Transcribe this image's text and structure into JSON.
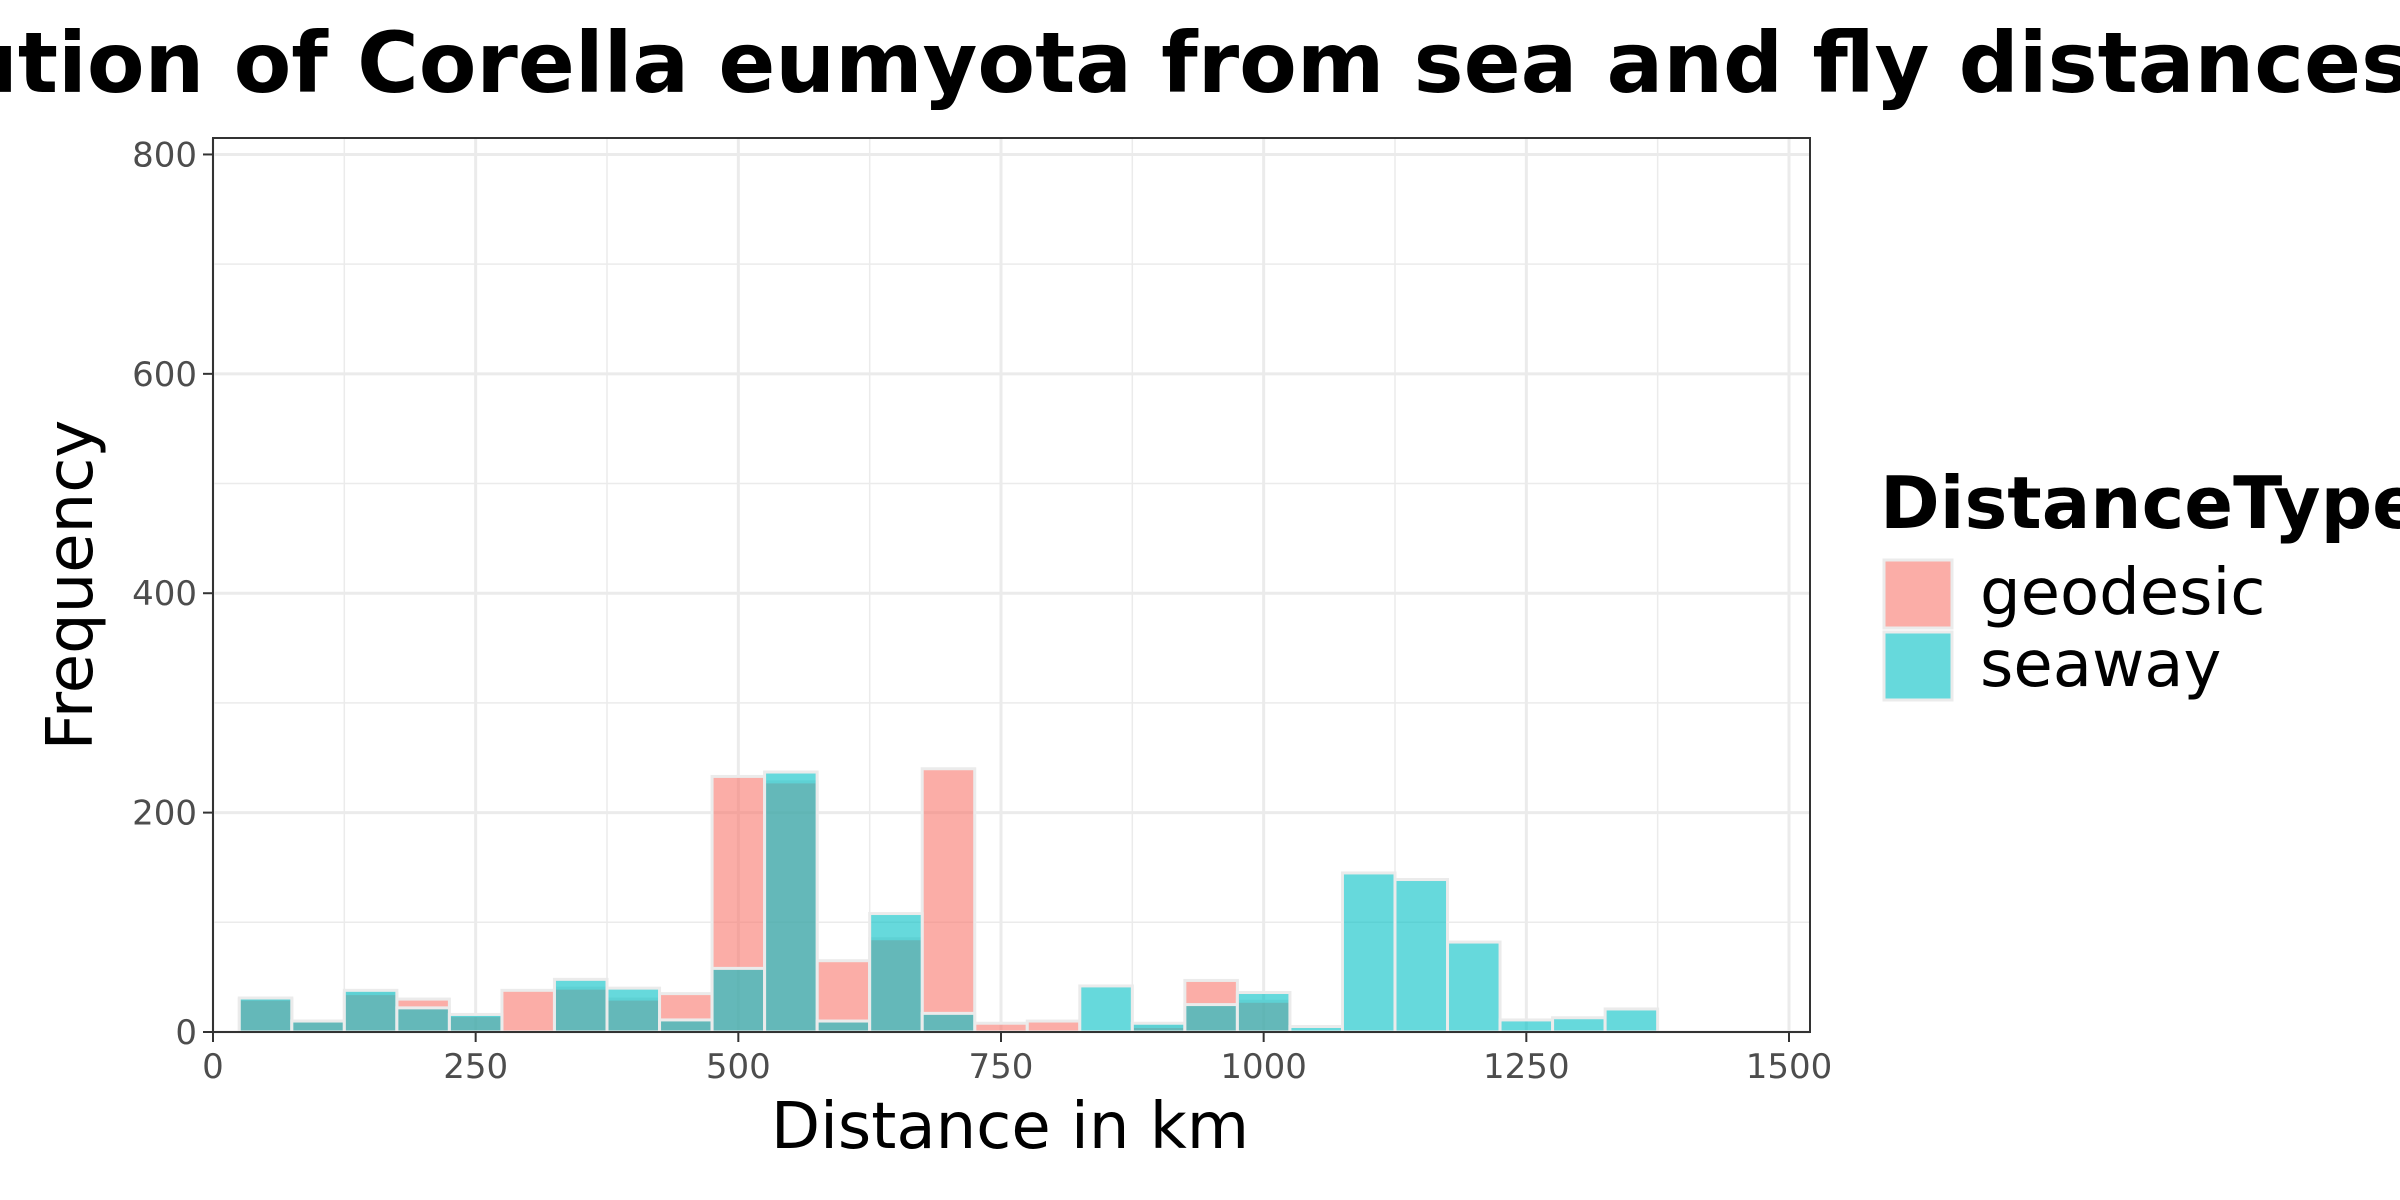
{
  "chart_data": {
    "type": "bar",
    "title": "Distribution of Corella eumyota from sea and fly distances",
    "xlabel": "Distance in km",
    "ylabel": "Frequency",
    "xlim": [
      0,
      1520
    ],
    "ylim": [
      0,
      815
    ],
    "x_ticks": [
      0,
      250,
      500,
      750,
      1000,
      1250,
      1500
    ],
    "y_ticks": [
      0,
      200,
      400,
      600,
      800
    ],
    "grid": true,
    "legend_title": "DistanceType",
    "legend_position": "right",
    "bin_width": 50,
    "series": [
      {
        "name": "geodesic",
        "color": "#F8766D",
        "bin_starts": [
          25,
          75,
          125,
          175,
          225,
          275,
          325,
          375,
          425,
          475,
          525,
          575,
          625,
          675,
          725,
          775,
          825,
          875,
          925,
          975,
          1025,
          1075,
          1125,
          1175,
          1225,
          1275,
          1325,
          1375,
          1425
        ],
        "values": [
          30,
          10,
          35,
          30,
          15,
          38,
          40,
          30,
          35,
          233,
          228,
          65,
          85,
          240,
          8,
          10,
          0,
          5,
          47,
          28,
          0,
          0,
          0,
          0,
          0,
          0,
          0,
          0,
          0
        ]
      },
      {
        "name": "seaway",
        "color": "#00BFC4",
        "bin_starts": [
          25,
          75,
          125,
          175,
          225,
          275,
          325,
          375,
          425,
          475,
          525,
          575,
          625,
          675,
          725,
          775,
          825,
          875,
          925,
          975,
          1025,
          1075,
          1125,
          1175,
          1225,
          1275,
          1325,
          1375,
          1425
        ],
        "values": [
          31,
          10,
          38,
          22,
          16,
          0,
          48,
          40,
          11,
          58,
          237,
          10,
          108,
          17,
          0,
          0,
          42,
          8,
          25,
          36,
          5,
          145,
          139,
          82,
          11,
          13,
          21,
          0,
          0
        ]
      }
    ]
  }
}
